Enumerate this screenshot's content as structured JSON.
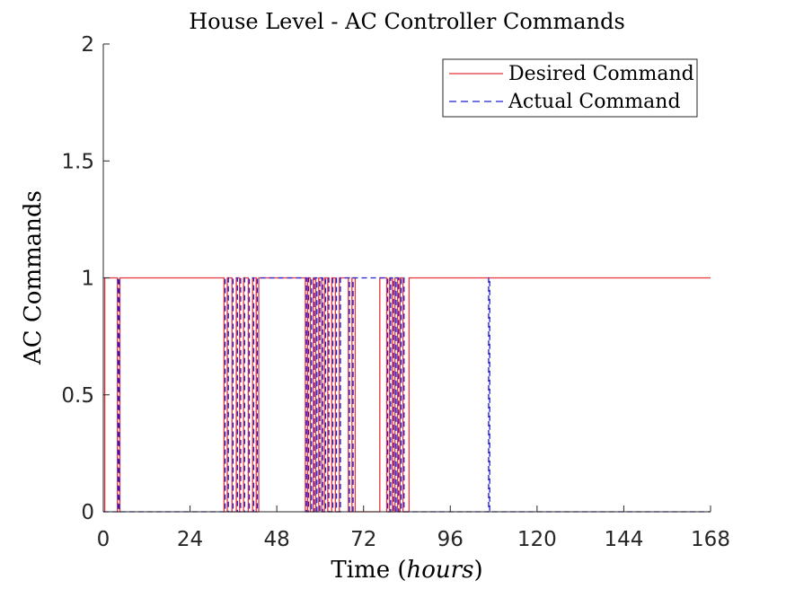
{
  "chart_data": {
    "type": "line",
    "title": "House Level - AC Controller Commands",
    "xlabel": "Time",
    "xlabel_unit": "hours",
    "ylabel": "AC Commands",
    "xlim": [
      0,
      168
    ],
    "ylim": [
      0,
      2
    ],
    "xticks": [
      "0",
      "24",
      "48",
      "72",
      "96",
      "120",
      "144",
      "168"
    ],
    "yticks": [
      "0",
      "0.5",
      "1",
      "1.5",
      "2"
    ],
    "grid": false,
    "legend_position": "top-right",
    "series": [
      {
        "name": "Desired Command",
        "color": "#e8323c",
        "style": "solid",
        "x": [
          0,
          0.4,
          0.4,
          3.9,
          3.9,
          4.6,
          4.6,
          33.4,
          33.4,
          34.3,
          34.3,
          35.6,
          35.6,
          36.8,
          36.8,
          37.7,
          37.7,
          38.8,
          38.8,
          40.1,
          40.1,
          41.3,
          41.3,
          42.3,
          42.3,
          43.0,
          43.0,
          55.9,
          55.9,
          56.5,
          56.5,
          57.3,
          57.3,
          58.1,
          58.1,
          58.8,
          58.8,
          59.6,
          59.6,
          60.4,
          60.4,
          61.2,
          61.2,
          62.1,
          62.1,
          63.2,
          63.2,
          64.2,
          64.2,
          65.3,
          65.3,
          67.8,
          67.8,
          68.8,
          68.8,
          69.7,
          69.7,
          76.5,
          76.5,
          78.4,
          78.4,
          79.2,
          79.2,
          80.0,
          80.0,
          80.7,
          80.7,
          81.4,
          81.4,
          82.1,
          82.1,
          82.9,
          82.9,
          84.6,
          84.6,
          168
        ],
        "values": [
          0,
          0,
          1,
          1,
          0,
          0,
          1,
          1,
          0,
          0,
          1,
          1,
          0,
          0,
          1,
          1,
          0,
          0,
          1,
          1,
          0,
          0,
          1,
          1,
          0,
          0,
          1,
          1,
          0,
          0,
          1,
          1,
          0,
          0,
          1,
          1,
          0,
          0,
          1,
          1,
          0,
          0,
          1,
          1,
          0,
          0,
          1,
          1,
          0,
          0,
          1,
          1,
          0,
          0,
          1,
          1,
          0,
          0,
          1,
          1,
          0,
          0,
          1,
          1,
          0,
          0,
          1,
          1,
          0,
          0,
          1,
          1,
          0,
          0,
          1,
          1
        ]
      },
      {
        "name": "Actual Command",
        "color": "#1f1fd0",
        "style": "dashed",
        "x": [
          0,
          4.1,
          4.1,
          4.4,
          4.4,
          33.7,
          33.7,
          34.6,
          34.6,
          35.9,
          35.9,
          37.1,
          37.1,
          38.0,
          38.0,
          39.1,
          39.1,
          40.4,
          40.4,
          41.6,
          41.6,
          42.6,
          42.6,
          56.2,
          56.2,
          56.8,
          56.8,
          57.6,
          57.6,
          58.4,
          58.4,
          59.1,
          59.1,
          59.9,
          59.9,
          60.7,
          60.7,
          61.5,
          61.5,
          62.4,
          62.4,
          63.5,
          63.5,
          64.5,
          64.5,
          65.6,
          65.6,
          68.1,
          68.1,
          69.1,
          69.1,
          78.7,
          78.7,
          79.5,
          79.5,
          80.3,
          80.3,
          81.0,
          81.0,
          81.7,
          81.7,
          82.4,
          82.4,
          83.2,
          83.2,
          106.6,
          106.6,
          106.9,
          106.9,
          168
        ],
        "values": [
          0,
          0,
          1,
          1,
          0,
          0,
          1,
          1,
          0,
          0,
          1,
          1,
          0,
          0,
          1,
          1,
          0,
          0,
          1,
          1,
          0,
          0,
          1,
          1,
          0,
          0,
          1,
          1,
          0,
          0,
          1,
          1,
          0,
          0,
          1,
          1,
          0,
          0,
          1,
          1,
          0,
          0,
          1,
          1,
          0,
          0,
          1,
          1,
          0,
          0,
          1,
          1,
          0,
          0,
          1,
          1,
          0,
          0,
          1,
          1,
          0,
          0,
          1,
          1,
          0,
          0,
          1,
          1,
          0,
          0
        ]
      }
    ]
  }
}
